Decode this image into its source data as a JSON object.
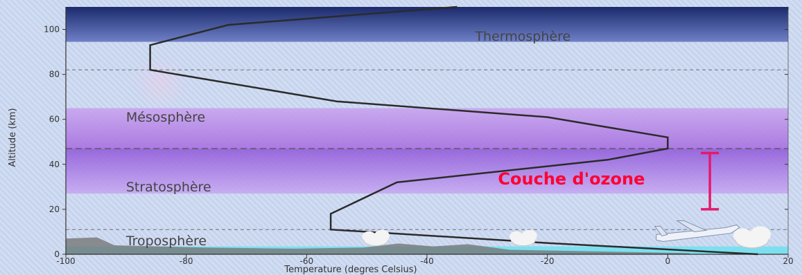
{
  "chart_data": {
    "type": "line",
    "xlabel": "Temperature (degres Celsius)",
    "ylabel": "Altitude (km)",
    "xlim": [
      -100,
      20
    ],
    "ylim": [
      0,
      110
    ],
    "xticks": [
      -100,
      -80,
      -60,
      -40,
      -20,
      0,
      20
    ],
    "yticks": [
      0,
      20,
      40,
      60,
      80,
      100
    ],
    "grid": false,
    "series": [
      {
        "values_xy": [
          [
            15,
            0
          ],
          [
            -20,
            5
          ],
          [
            -56,
            11
          ],
          [
            -56,
            18
          ],
          [
            -45,
            32
          ],
          [
            -10,
            42
          ],
          [
            0,
            47
          ],
          [
            0,
            52
          ],
          [
            -20,
            61
          ],
          [
            -55,
            68
          ],
          [
            -86,
            82
          ],
          [
            -86,
            93
          ],
          [
            -73,
            102
          ],
          [
            -35,
            110
          ]
        ]
      }
    ],
    "boundaries": [
      11,
      47,
      82
    ],
    "layers": [
      {
        "name": "Thermosphère",
        "label_x": -32,
        "label_y": 95
      },
      {
        "name": "Mésosphère",
        "label_x": -90,
        "label_y": 59
      },
      {
        "name": "Stratosphère",
        "label_x": -90,
        "label_y": 28
      },
      {
        "name": "Troposphère",
        "label_x": -90,
        "label_y": 4
      }
    ],
    "annotations": [
      {
        "text": "Couche d'ozone",
        "x": -16,
        "y": 31
      }
    ],
    "ozone_range": [
      20,
      45
    ],
    "colors": {
      "line": "#2b2b2b",
      "top_band": "#1a2a6b",
      "meso_band": "#b88ae8",
      "strato_band": "#a56ee0",
      "ozone": "#e6186c",
      "ground": "#777777",
      "sea": "#6fe0ee"
    }
  }
}
